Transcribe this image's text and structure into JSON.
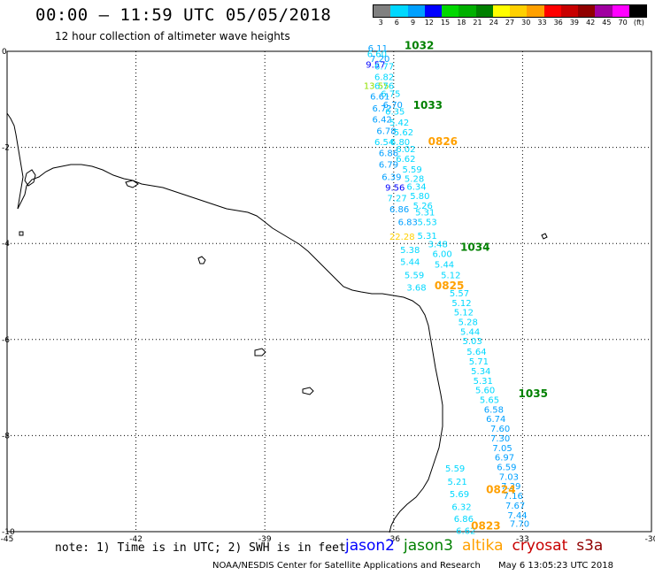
{
  "header": {
    "title": "00:00 – 11:59 UTC 05/05/2018",
    "subtitle": "12 hour collection of altimeter wave heights"
  },
  "legend": {
    "unit_label": "(ft)",
    "bins": [
      {
        "label": "3",
        "color": "#808080"
      },
      {
        "label": "6",
        "color": "#00d8ff"
      },
      {
        "label": "9",
        "color": "#00a0ff"
      },
      {
        "label": "12",
        "color": "#0000ff"
      },
      {
        "label": "15",
        "color": "#00d800"
      },
      {
        "label": "18",
        "color": "#00b000"
      },
      {
        "label": "21",
        "color": "#008000"
      },
      {
        "label": "24",
        "color": "#ffff00"
      },
      {
        "label": "27",
        "color": "#ffd000"
      },
      {
        "label": "30",
        "color": "#ffa000"
      },
      {
        "label": "33",
        "color": "#ff0000"
      },
      {
        "label": "36",
        "color": "#c80000"
      },
      {
        "label": "39",
        "color": "#900000"
      },
      {
        "label": "42",
        "color": "#a000a0"
      },
      {
        "label": "45",
        "color": "#ff00ff"
      },
      {
        "label": "70",
        "color": "#000000"
      }
    ]
  },
  "map": {
    "lon_labels": [
      "-45",
      "-42",
      "-39",
      "-36",
      "-33",
      "-30"
    ],
    "lon_values": [
      -45,
      -42,
      -39,
      -36,
      -33,
      -30
    ],
    "lat_labels": [
      "0",
      "-2",
      "-4",
      "-6",
      "-8",
      "-10"
    ],
    "lat_values": [
      0,
      -2,
      -4,
      -6,
      -8,
      -10
    ],
    "pass_labels": [
      {
        "text": "1032",
        "lon": -35.75,
        "lat": 0.05,
        "color": "#008000"
      },
      {
        "text": "1033",
        "lon": -35.55,
        "lat": -1.2,
        "color": "#008000"
      },
      {
        "text": "0826",
        "lon": -35.2,
        "lat": -1.95,
        "color": "#ffa000"
      },
      {
        "text": "1034",
        "lon": -34.45,
        "lat": -4.15,
        "color": "#008000"
      },
      {
        "text": "0825",
        "lon": -35.05,
        "lat": -4.95,
        "color": "#ffa000"
      },
      {
        "text": "1035",
        "lon": -33.1,
        "lat": -7.2,
        "color": "#008000"
      },
      {
        "text": "0824",
        "lon": -33.85,
        "lat": -9.2,
        "color": "#ffa000"
      },
      {
        "text": "0823",
        "lon": -34.2,
        "lat": -9.95,
        "color": "#ffa000"
      }
    ],
    "wave_labels": [
      {
        "text": "6.11",
        "lon": -36.6,
        "lat": 0.0,
        "color": "#00a0ff"
      },
      {
        "text": "6.60",
        "lon": -36.62,
        "lat": -0.12,
        "color": "#00d8ff"
      },
      {
        "text": "7.20",
        "lon": -36.55,
        "lat": -0.22,
        "color": "#00a0ff"
      },
      {
        "text": "9.57",
        "lon": -36.65,
        "lat": -0.34,
        "color": "#0000ff"
      },
      {
        "text": "6.77",
        "lon": -36.45,
        "lat": -0.38,
        "color": "#00d8ff"
      },
      {
        "text": "6.82",
        "lon": -36.45,
        "lat": -0.6,
        "color": "#00d8ff"
      },
      {
        "text": "13.55",
        "lon": -36.7,
        "lat": -0.78,
        "color": "#90e000"
      },
      {
        "text": "6.76",
        "lon": -36.45,
        "lat": -0.78,
        "color": "#00d8ff"
      },
      {
        "text": "6.75",
        "lon": -36.3,
        "lat": -0.95,
        "color": "#00d8ff"
      },
      {
        "text": "6.61",
        "lon": -36.55,
        "lat": -1.0,
        "color": "#00a0ff"
      },
      {
        "text": "6.70",
        "lon": -36.25,
        "lat": -1.18,
        "color": "#00a0ff"
      },
      {
        "text": "6.72",
        "lon": -36.5,
        "lat": -1.25,
        "color": "#00a0ff"
      },
      {
        "text": "6.35",
        "lon": -36.2,
        "lat": -1.32,
        "color": "#00d8ff"
      },
      {
        "text": "6.42",
        "lon": -36.5,
        "lat": -1.48,
        "color": "#00a0ff"
      },
      {
        "text": "5.42",
        "lon": -36.1,
        "lat": -1.55,
        "color": "#00d8ff"
      },
      {
        "text": "6.78",
        "lon": -36.4,
        "lat": -1.72,
        "color": "#00a0ff"
      },
      {
        "text": "5.62",
        "lon": -36.0,
        "lat": -1.75,
        "color": "#00d8ff"
      },
      {
        "text": "6.54",
        "lon": -36.45,
        "lat": -1.95,
        "color": "#00d8ff"
      },
      {
        "text": "6.80",
        "lon": -36.08,
        "lat": -1.95,
        "color": "#00d8ff"
      },
      {
        "text": "6.86",
        "lon": -36.35,
        "lat": -2.18,
        "color": "#00a0ff"
      },
      {
        "text": "6.02",
        "lon": -35.95,
        "lat": -2.1,
        "color": "#00d8ff"
      },
      {
        "text": "6.62",
        "lon": -35.95,
        "lat": -2.3,
        "color": "#00d8ff"
      },
      {
        "text": "6.79",
        "lon": -36.35,
        "lat": -2.42,
        "color": "#00a0ff"
      },
      {
        "text": "5.59",
        "lon": -35.8,
        "lat": -2.52,
        "color": "#00d8ff"
      },
      {
        "text": "6.39",
        "lon": -36.28,
        "lat": -2.68,
        "color": "#00a0ff"
      },
      {
        "text": "5.28",
        "lon": -35.75,
        "lat": -2.72,
        "color": "#00d8ff"
      },
      {
        "text": "9.56",
        "lon": -36.2,
        "lat": -2.9,
        "color": "#0000ff"
      },
      {
        "text": "6.34",
        "lon": -35.7,
        "lat": -2.88,
        "color": "#00d8ff"
      },
      {
        "text": "7.27",
        "lon": -36.15,
        "lat": -3.12,
        "color": "#00d8ff"
      },
      {
        "text": "5.80",
        "lon": -35.62,
        "lat": -3.08,
        "color": "#00d8ff"
      },
      {
        "text": "5.26",
        "lon": -35.55,
        "lat": -3.28,
        "color": "#00d8ff"
      },
      {
        "text": "6.86",
        "lon": -36.1,
        "lat": -3.35,
        "color": "#00a0ff"
      },
      {
        "text": "5.31",
        "lon": -35.5,
        "lat": -3.42,
        "color": "#00d8ff"
      },
      {
        "text": "6.83",
        "lon": -35.9,
        "lat": -3.62,
        "color": "#00a0ff"
      },
      {
        "text": "5.53",
        "lon": -35.45,
        "lat": -3.62,
        "color": "#00d8ff"
      },
      {
        "text": "22.28",
        "lon": -36.1,
        "lat": -3.92,
        "color": "#ffd000"
      },
      {
        "text": "5.31",
        "lon": -35.45,
        "lat": -3.9,
        "color": "#00d8ff"
      },
      {
        "text": "3.48",
        "lon": -35.2,
        "lat": -4.08,
        "color": "#00d8ff"
      },
      {
        "text": "5.38",
        "lon": -35.85,
        "lat": -4.2,
        "color": "#00d8ff"
      },
      {
        "text": "6.00",
        "lon": -35.1,
        "lat": -4.28,
        "color": "#00d8ff"
      },
      {
        "text": "5.44",
        "lon": -35.85,
        "lat": -4.45,
        "color": "#00d8ff"
      },
      {
        "text": "5.44",
        "lon": -35.05,
        "lat": -4.5,
        "color": "#00d8ff"
      },
      {
        "text": "5.59",
        "lon": -35.75,
        "lat": -4.72,
        "color": "#00d8ff"
      },
      {
        "text": "5.12",
        "lon": -34.9,
        "lat": -4.72,
        "color": "#00d8ff"
      },
      {
        "text": "3.68",
        "lon": -35.7,
        "lat": -4.98,
        "color": "#00d8ff"
      },
      {
        "text": "5.57",
        "lon": -34.7,
        "lat": -5.1,
        "color": "#00d8ff"
      },
      {
        "text": "5.12",
        "lon": -34.65,
        "lat": -5.3,
        "color": "#00d8ff"
      },
      {
        "text": "5.12",
        "lon": -34.6,
        "lat": -5.5,
        "color": "#00d8ff"
      },
      {
        "text": "5.28",
        "lon": -34.5,
        "lat": -5.7,
        "color": "#00d8ff"
      },
      {
        "text": "5.44",
        "lon": -34.45,
        "lat": -5.9,
        "color": "#00d8ff"
      },
      {
        "text": "5.03",
        "lon": -34.4,
        "lat": -6.1,
        "color": "#00d8ff"
      },
      {
        "text": "5.64",
        "lon": -34.3,
        "lat": -6.32,
        "color": "#00d8ff"
      },
      {
        "text": "5.71",
        "lon": -34.25,
        "lat": -6.52,
        "color": "#00d8ff"
      },
      {
        "text": "5.34",
        "lon": -34.2,
        "lat": -6.72,
        "color": "#00d8ff"
      },
      {
        "text": "5.31",
        "lon": -34.15,
        "lat": -6.92,
        "color": "#00d8ff"
      },
      {
        "text": "5.60",
        "lon": -34.1,
        "lat": -7.12,
        "color": "#00d8ff"
      },
      {
        "text": "5.65",
        "lon": -34.0,
        "lat": -7.32,
        "color": "#00d8ff"
      },
      {
        "text": "6.58",
        "lon": -33.9,
        "lat": -7.52,
        "color": "#00a0ff"
      },
      {
        "text": "6.74",
        "lon": -33.85,
        "lat": -7.72,
        "color": "#00a0ff"
      },
      {
        "text": "7.60",
        "lon": -33.75,
        "lat": -7.92,
        "color": "#00a0ff"
      },
      {
        "text": "7.30",
        "lon": -33.75,
        "lat": -8.12,
        "color": "#00a0ff"
      },
      {
        "text": "7.05",
        "lon": -33.7,
        "lat": -8.32,
        "color": "#00a0ff"
      },
      {
        "text": "6.97",
        "lon": -33.65,
        "lat": -8.52,
        "color": "#00a0ff"
      },
      {
        "text": "6.59",
        "lon": -33.6,
        "lat": -8.72,
        "color": "#00a0ff"
      },
      {
        "text": "5.59",
        "lon": -34.8,
        "lat": -8.75,
        "color": "#00d8ff"
      },
      {
        "text": "7.03",
        "lon": -33.55,
        "lat": -8.92,
        "color": "#00a0ff"
      },
      {
        "text": "5.21",
        "lon": -34.75,
        "lat": -9.02,
        "color": "#00d8ff"
      },
      {
        "text": "7.39",
        "lon": -33.5,
        "lat": -9.12,
        "color": "#00a0ff"
      },
      {
        "text": "5.69",
        "lon": -34.7,
        "lat": -9.28,
        "color": "#00d8ff"
      },
      {
        "text": "7.16",
        "lon": -33.45,
        "lat": -9.32,
        "color": "#00a0ff"
      },
      {
        "text": "6.32",
        "lon": -34.65,
        "lat": -9.55,
        "color": "#00d8ff"
      },
      {
        "text": "7.67",
        "lon": -33.4,
        "lat": -9.52,
        "color": "#00a0ff"
      },
      {
        "text": "7.44",
        "lon": -33.35,
        "lat": -9.72,
        "color": "#00a0ff"
      },
      {
        "text": "6.86",
        "lon": -34.6,
        "lat": -9.8,
        "color": "#00d8ff"
      },
      {
        "text": "7.70",
        "lon": -33.3,
        "lat": -9.9,
        "color": "#00a0ff"
      },
      {
        "text": "6.62",
        "lon": -34.55,
        "lat": -10.05,
        "color": "#00d8ff"
      }
    ]
  },
  "footer": {
    "note": "note: 1) Time is in UTC; 2) SWH is in feet",
    "satellites": [
      {
        "name": "jason2",
        "color": "#0000ff"
      },
      {
        "name": "jason3",
        "color": "#008000"
      },
      {
        "name": "altika",
        "color": "#ffa000"
      },
      {
        "name": "cryosat",
        "color": "#c80000"
      },
      {
        "name": "s3a",
        "color": "#900000"
      }
    ],
    "credit_left": "NOAA/NESDIS Center for Satellite Applications and Research",
    "credit_right": "May  6 13:05:23 UTC 2018"
  }
}
